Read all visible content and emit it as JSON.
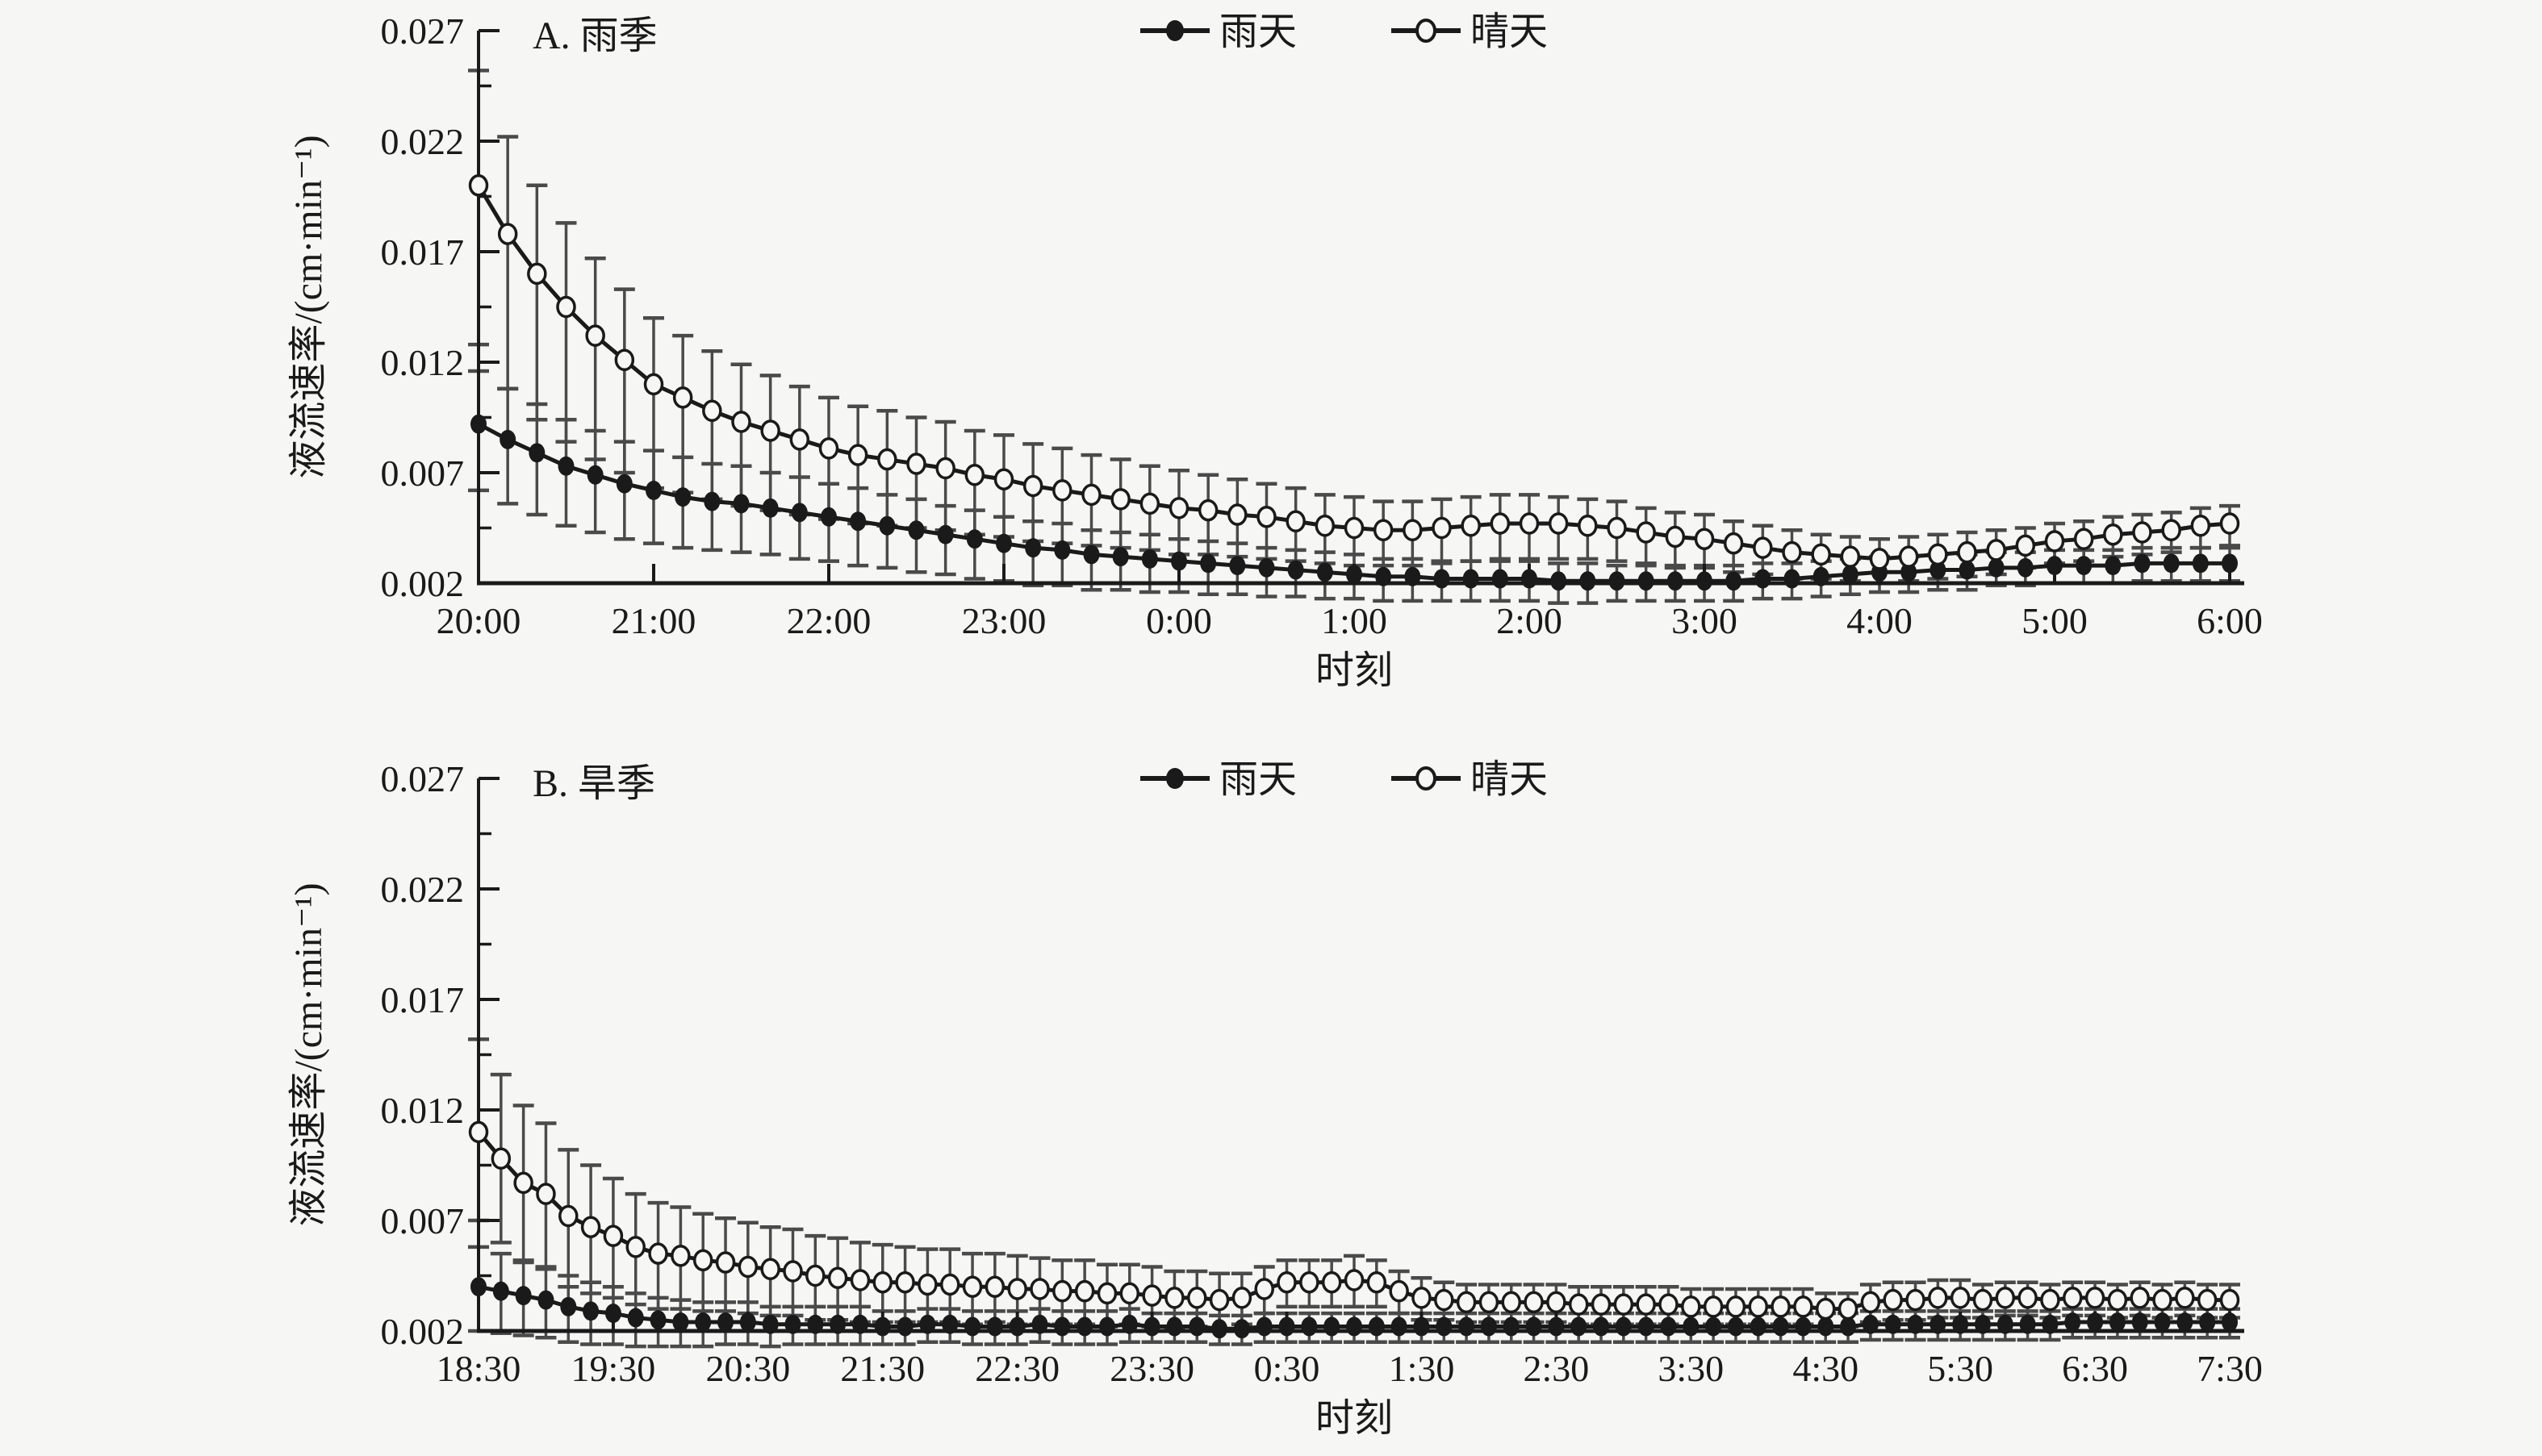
{
  "page": {
    "background": "#f6f6f5",
    "ink_color": "#1a1a1a",
    "errorbar_color": "#4a4a4a"
  },
  "chart_data": [
    {
      "type": "line",
      "panel_title": "A. 雨季",
      "xlabel": "时刻",
      "ylabel": "液流速率/(cm·min⁻¹)",
      "ylim": [
        0.002,
        0.027
      ],
      "ytick_labels": [
        "0.002",
        "0.007",
        "0.012",
        "0.017",
        "0.022",
        "0.027"
      ],
      "yticks": [
        0.002,
        0.007,
        0.012,
        0.017,
        0.022,
        0.027
      ],
      "yminorticks": [
        0.0045,
        0.0095,
        0.0145,
        0.0195,
        0.0245
      ],
      "xtick_labels": [
        "20:00",
        "21:00",
        "22:00",
        "23:00",
        "0:00",
        "1:00",
        "2:00",
        "3:00",
        "4:00",
        "5:00",
        "6:00"
      ],
      "interval_minutes": 10,
      "grid": false,
      "legend_position": "top-center",
      "series": [
        {
          "name": "雨天",
          "marker": "filled-circle",
          "values": [
            0.0092,
            0.0085,
            0.0079,
            0.0073,
            0.0069,
            0.0065,
            0.0062,
            0.0059,
            0.0057,
            0.0056,
            0.0054,
            0.0052,
            0.005,
            0.0048,
            0.0046,
            0.0044,
            0.0042,
            0.004,
            0.0038,
            0.0036,
            0.0035,
            0.0033,
            0.0032,
            0.0031,
            0.003,
            0.0029,
            0.0028,
            0.0027,
            0.0026,
            0.0025,
            0.0024,
            0.0023,
            0.0023,
            0.0022,
            0.0022,
            0.0022,
            0.0022,
            0.0021,
            0.0021,
            0.0021,
            0.0021,
            0.0021,
            0.0021,
            0.0021,
            0.0022,
            0.0022,
            0.0023,
            0.0024,
            0.0025,
            0.0025,
            0.0026,
            0.0026,
            0.0027,
            0.0027,
            0.0028,
            0.0028,
            0.0028,
            0.0029,
            0.0029,
            0.0029,
            0.0029
          ],
          "err_up": [
            0.0024,
            0.0023,
            0.0022,
            0.0021,
            0.002,
            0.0019,
            0.0018,
            0.0018,
            0.0017,
            0.0017,
            0.0016,
            0.0016,
            0.0015,
            0.0015,
            0.0014,
            0.0014,
            0.0013,
            0.0013,
            0.0012,
            0.0012,
            0.0012,
            0.0011,
            0.0011,
            0.0011,
            0.001,
            0.001,
            0.001,
            0.0009,
            0.0009,
            0.0009,
            0.0009,
            0.0008,
            0.0008,
            0.0008,
            0.0008,
            0.0008,
            0.0008,
            0.0008,
            0.0008,
            0.0007,
            0.0007,
            0.0007,
            0.0007,
            0.0007,
            0.0007,
            0.0007,
            0.0007,
            0.0007,
            0.0007,
            0.0007,
            0.0007,
            0.0007,
            0.0007,
            0.0007,
            0.0007,
            0.0007,
            0.0007,
            0.0007,
            0.0007,
            0.0007,
            0.0007
          ],
          "err_dn": [
            0.003,
            0.0029,
            0.0028,
            0.0027,
            0.0026,
            0.0025,
            0.0024,
            0.0023,
            0.0022,
            0.0022,
            0.0021,
            0.0021,
            0.002,
            0.002,
            0.0019,
            0.0019,
            0.0018,
            0.0018,
            0.0017,
            0.0017,
            0.0016,
            0.0016,
            0.0015,
            0.0015,
            0.0014,
            0.0014,
            0.0013,
            0.0013,
            0.0012,
            0.0012,
            0.0011,
            0.0011,
            0.0011,
            0.001,
            0.001,
            0.001,
            0.001,
            0.001,
            0.001,
            0.0009,
            0.0009,
            0.0009,
            0.0009,
            0.0009,
            0.0009,
            0.0009,
            0.0009,
            0.0009,
            0.0009,
            0.0009,
            0.0009,
            0.0009,
            0.0008,
            0.0008,
            0.0008,
            0.0008,
            0.0008,
            0.0008,
            0.0008,
            0.0008,
            0.0008
          ]
        },
        {
          "name": "晴天",
          "marker": "open-circle",
          "values": [
            0.02,
            0.0178,
            0.016,
            0.0145,
            0.0132,
            0.0121,
            0.011,
            0.0104,
            0.0098,
            0.0093,
            0.0089,
            0.0085,
            0.0081,
            0.0078,
            0.0076,
            0.0074,
            0.0072,
            0.0069,
            0.0067,
            0.0064,
            0.0062,
            0.006,
            0.0058,
            0.0056,
            0.0054,
            0.0053,
            0.0051,
            0.005,
            0.0048,
            0.0046,
            0.0045,
            0.0044,
            0.0044,
            0.0045,
            0.0046,
            0.0047,
            0.0047,
            0.0047,
            0.0046,
            0.0045,
            0.0043,
            0.0041,
            0.004,
            0.0038,
            0.0036,
            0.0034,
            0.0033,
            0.0032,
            0.0031,
            0.0032,
            0.0033,
            0.0034,
            0.0035,
            0.0037,
            0.0039,
            0.004,
            0.0042,
            0.0043,
            0.0044,
            0.0046,
            0.0047
          ],
          "err_up": [
            0.0052,
            0.0044,
            0.004,
            0.0038,
            0.0035,
            0.0032,
            0.003,
            0.0028,
            0.0027,
            0.0026,
            0.0025,
            0.0024,
            0.0023,
            0.0022,
            0.0022,
            0.0021,
            0.0021,
            0.002,
            0.002,
            0.0019,
            0.0019,
            0.0018,
            0.0018,
            0.0017,
            0.0017,
            0.0016,
            0.0016,
            0.0015,
            0.0015,
            0.0014,
            0.0014,
            0.0013,
            0.0013,
            0.0013,
            0.0013,
            0.0013,
            0.0013,
            0.0012,
            0.0012,
            0.0012,
            0.0011,
            0.0011,
            0.0011,
            0.001,
            0.001,
            0.001,
            0.0009,
            0.0009,
            0.0009,
            0.0009,
            0.0009,
            0.0009,
            0.0009,
            0.0008,
            0.0008,
            0.0008,
            0.0008,
            0.0008,
            0.0008,
            0.0008,
            0.0008
          ],
          "err_dn": [
            0.0072,
            0.007,
            0.0066,
            0.0061,
            0.0056,
            0.0051,
            0.0047,
            0.0043,
            0.004,
            0.0038,
            0.0036,
            0.0034,
            0.0032,
            0.0031,
            0.003,
            0.0029,
            0.0028,
            0.0027,
            0.0026,
            0.0025,
            0.0024,
            0.0023,
            0.0022,
            0.0021,
            0.0021,
            0.002,
            0.0019,
            0.0019,
            0.0018,
            0.0017,
            0.0017,
            0.0016,
            0.0016,
            0.0016,
            0.0016,
            0.0016,
            0.0016,
            0.0016,
            0.0015,
            0.0015,
            0.0014,
            0.0014,
            0.0013,
            0.0013,
            0.0012,
            0.0012,
            0.0011,
            0.0011,
            0.0011,
            0.0011,
            0.0011,
            0.0011,
            0.0011,
            0.001,
            0.001,
            0.001,
            0.001,
            0.001,
            0.001,
            0.001,
            0.001
          ]
        }
      ]
    },
    {
      "type": "line",
      "panel_title": "B. 旱季",
      "xlabel": "时刻",
      "ylabel": "液流速率/(cm·min⁻¹)",
      "ylim": [
        0.002,
        0.027
      ],
      "ytick_labels": [
        "0.002",
        "0.007",
        "0.012",
        "0.017",
        "0.022",
        "0.027"
      ],
      "yticks": [
        0.002,
        0.007,
        0.012,
        0.017,
        0.022,
        0.027
      ],
      "yminorticks": [
        0.0045,
        0.0095,
        0.0145,
        0.0195,
        0.0245
      ],
      "xtick_labels": [
        "18:30",
        "19:30",
        "20:30",
        "21:30",
        "22:30",
        "23:30",
        "0:30",
        "1:30",
        "2:30",
        "3:30",
        "4:30",
        "5:30",
        "6:30",
        "7:30"
      ],
      "interval_minutes": 10,
      "grid": false,
      "legend_position": "top-center",
      "series": [
        {
          "name": "雨天",
          "marker": "filled-circle",
          "values": [
            0.004,
            0.0038,
            0.0036,
            0.0034,
            0.0031,
            0.0029,
            0.0028,
            0.0026,
            0.0025,
            0.0024,
            0.0024,
            0.0024,
            0.0024,
            0.0023,
            0.0023,
            0.0023,
            0.0023,
            0.0023,
            0.0022,
            0.0022,
            0.0023,
            0.0023,
            0.0022,
            0.0022,
            0.0022,
            0.0023,
            0.0022,
            0.0022,
            0.0022,
            0.0023,
            0.0022,
            0.0022,
            0.0022,
            0.0021,
            0.0021,
            0.0022,
            0.0022,
            0.0022,
            0.0022,
            0.0022,
            0.0022,
            0.0022,
            0.0022,
            0.0022,
            0.0022,
            0.0022,
            0.0022,
            0.0022,
            0.0022,
            0.0022,
            0.0022,
            0.0022,
            0.0022,
            0.0022,
            0.0022,
            0.0022,
            0.0022,
            0.0022,
            0.0022,
            0.0022,
            0.0022,
            0.0022,
            0.0023,
            0.0023,
            0.0023,
            0.0023,
            0.0023,
            0.0023,
            0.0023,
            0.0023,
            0.0023,
            0.0024,
            0.0024,
            0.0024,
            0.0024,
            0.0024,
            0.0024,
            0.0024,
            0.0024
          ],
          "err_up": [
            0.0018,
            0.0017,
            0.0016,
            0.0015,
            0.0014,
            0.0013,
            0.0012,
            0.0011,
            0.001,
            0.001,
            0.0009,
            0.0009,
            0.0009,
            0.0008,
            0.0008,
            0.0008,
            0.0008,
            0.0008,
            0.0007,
            0.0007,
            0.0007,
            0.0007,
            0.0007,
            0.0007,
            0.0007,
            0.0007,
            0.0007,
            0.0007,
            0.0007,
            0.0007,
            0.0006,
            0.0006,
            0.0006,
            0.0006,
            0.0006,
            0.0006,
            0.0006,
            0.0006,
            0.0006,
            0.0006,
            0.0006,
            0.0006,
            0.0006,
            0.0006,
            0.0006,
            0.0006,
            0.0006,
            0.0006,
            0.0006,
            0.0006,
            0.0006,
            0.0006,
            0.0006,
            0.0006,
            0.0006,
            0.0006,
            0.0006,
            0.0006,
            0.0006,
            0.0006,
            0.0006,
            0.0006,
            0.0006,
            0.0006,
            0.0006,
            0.0006,
            0.0006,
            0.0006,
            0.0006,
            0.0006,
            0.0006,
            0.0006,
            0.0006,
            0.0006,
            0.0006,
            0.0006,
            0.0006,
            0.0006,
            0.0006
          ],
          "err_dn": [
            0.002,
            0.0019,
            0.0018,
            0.0017,
            0.0016,
            0.0015,
            0.0014,
            0.0013,
            0.0012,
            0.0011,
            0.0011,
            0.001,
            0.001,
            0.001,
            0.0009,
            0.0009,
            0.0009,
            0.0009,
            0.0008,
            0.0008,
            0.0008,
            0.0008,
            0.0008,
            0.0008,
            0.0008,
            0.0008,
            0.0008,
            0.0008,
            0.0008,
            0.0008,
            0.0007,
            0.0007,
            0.0007,
            0.0007,
            0.0007,
            0.0007,
            0.0007,
            0.0007,
            0.0007,
            0.0007,
            0.0007,
            0.0007,
            0.0007,
            0.0007,
            0.0007,
            0.0007,
            0.0007,
            0.0007,
            0.0007,
            0.0007,
            0.0007,
            0.0007,
            0.0007,
            0.0007,
            0.0007,
            0.0007,
            0.0007,
            0.0007,
            0.0007,
            0.0007,
            0.0007,
            0.0007,
            0.0007,
            0.0007,
            0.0007,
            0.0007,
            0.0007,
            0.0007,
            0.0007,
            0.0007,
            0.0007,
            0.0007,
            0.0007,
            0.0007,
            0.0007,
            0.0007,
            0.0007,
            0.0007,
            0.0007
          ]
        },
        {
          "name": "晴天",
          "marker": "open-circle",
          "values": [
            0.011,
            0.0098,
            0.0087,
            0.0082,
            0.0072,
            0.0067,
            0.0063,
            0.0058,
            0.0055,
            0.0054,
            0.0052,
            0.0051,
            0.0049,
            0.0048,
            0.0047,
            0.0045,
            0.0044,
            0.0043,
            0.0042,
            0.0042,
            0.0041,
            0.0041,
            0.004,
            0.004,
            0.0039,
            0.0039,
            0.0038,
            0.0038,
            0.0037,
            0.0037,
            0.0036,
            0.0035,
            0.0035,
            0.0034,
            0.0035,
            0.0039,
            0.0042,
            0.0042,
            0.0042,
            0.0043,
            0.0042,
            0.0038,
            0.0035,
            0.0034,
            0.0033,
            0.0033,
            0.0033,
            0.0033,
            0.0033,
            0.0032,
            0.0032,
            0.0032,
            0.0032,
            0.0032,
            0.0031,
            0.0031,
            0.0031,
            0.0031,
            0.0031,
            0.0031,
            0.003,
            0.003,
            0.0033,
            0.0034,
            0.0034,
            0.0035,
            0.0035,
            0.0034,
            0.0035,
            0.0035,
            0.0034,
            0.0035,
            0.0035,
            0.0034,
            0.0035,
            0.0034,
            0.0035,
            0.0034,
            0.0034
          ],
          "err_up": [
            0.0042,
            0.0038,
            0.0035,
            0.0032,
            0.003,
            0.0028,
            0.0026,
            0.0024,
            0.0023,
            0.0022,
            0.0021,
            0.002,
            0.002,
            0.0019,
            0.0019,
            0.0018,
            0.0018,
            0.0017,
            0.0017,
            0.0016,
            0.0016,
            0.0016,
            0.0015,
            0.0015,
            0.0015,
            0.0014,
            0.0014,
            0.0014,
            0.0013,
            0.0013,
            0.0013,
            0.0012,
            0.0012,
            0.0012,
            0.0011,
            0.001,
            0.001,
            0.001,
            0.001,
            0.0011,
            0.001,
            0.0009,
            0.0009,
            0.0008,
            0.0008,
            0.0008,
            0.0008,
            0.0008,
            0.0008,
            0.0008,
            0.0008,
            0.0008,
            0.0008,
            0.0008,
            0.0008,
            0.0008,
            0.0008,
            0.0008,
            0.0008,
            0.0008,
            0.0007,
            0.0007,
            0.0008,
            0.0008,
            0.0008,
            0.0008,
            0.0008,
            0.0007,
            0.0007,
            0.0007,
            0.0007,
            0.0007,
            0.0007,
            0.0007,
            0.0007,
            0.0007,
            0.0007,
            0.0007,
            0.0007
          ],
          "err_dn": [
            0.004,
            0.0038,
            0.0036,
            0.0034,
            0.0032,
            0.003,
            0.0028,
            0.0026,
            0.0025,
            0.0024,
            0.0023,
            0.0022,
            0.0021,
            0.0021,
            0.002,
            0.002,
            0.0019,
            0.0019,
            0.0018,
            0.0018,
            0.0017,
            0.0017,
            0.0017,
            0.0016,
            0.0016,
            0.0016,
            0.0015,
            0.0015,
            0.0015,
            0.0014,
            0.0014,
            0.0014,
            0.0013,
            0.0013,
            0.0012,
            0.0011,
            0.0011,
            0.0011,
            0.0011,
            0.0012,
            0.0011,
            0.001,
            0.001,
            0.0009,
            0.0009,
            0.0009,
            0.0009,
            0.0009,
            0.0009,
            0.0009,
            0.0009,
            0.0009,
            0.0009,
            0.0009,
            0.0009,
            0.0008,
            0.0008,
            0.0008,
            0.0008,
            0.0008,
            0.0008,
            0.0008,
            0.0009,
            0.0009,
            0.0009,
            0.0009,
            0.0009,
            0.0008,
            0.0008,
            0.0008,
            0.0008,
            0.0008,
            0.0008,
            0.0008,
            0.0008,
            0.0008,
            0.0008,
            0.0008,
            0.0008
          ]
        }
      ]
    }
  ]
}
